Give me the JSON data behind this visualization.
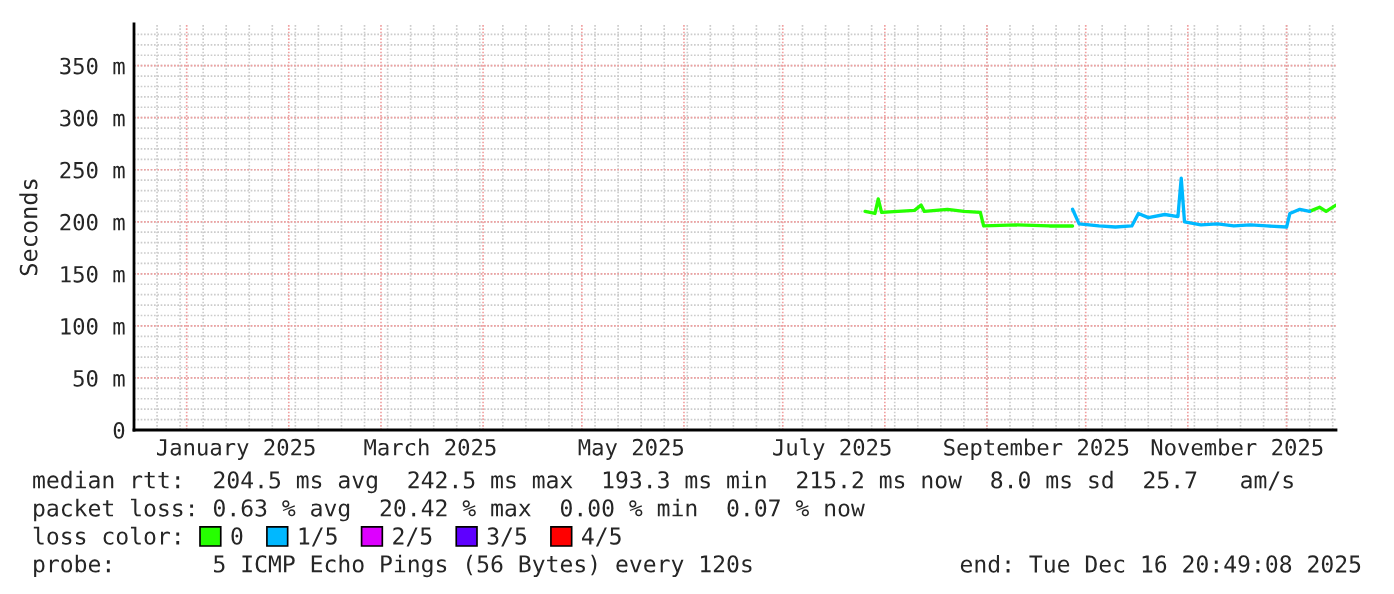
{
  "chart_data": {
    "type": "line",
    "ylabel": "Seconds",
    "xlim": [
      "2024-12-16",
      "2025-12-16"
    ],
    "xticks": [
      {
        "value": "2025-01-16",
        "label": "January 2025"
      },
      {
        "value": "2025-03-16",
        "label": "March 2025"
      },
      {
        "value": "2025-05-16",
        "label": "May 2025"
      },
      {
        "value": "2025-07-16",
        "label": "July 2025"
      },
      {
        "value": "2025-09-16",
        "label": "September 2025"
      },
      {
        "value": "2025-11-16",
        "label": "November 2025"
      }
    ],
    "ylim": [
      0,
      390
    ],
    "yticks": [
      0,
      {
        "value": 50,
        "label": "50 m"
      },
      {
        "value": 100,
        "label": "100 m"
      },
      {
        "value": 150,
        "label": "150 m"
      },
      {
        "value": 200,
        "label": "200 m"
      },
      {
        "value": 250,
        "label": "250 m"
      },
      {
        "value": 300,
        "label": "300 m"
      },
      {
        "value": 350,
        "label": "350 m"
      }
    ],
    "grid": true,
    "legend": "bottom",
    "legend_title": "loss color:",
    "series": [
      {
        "name": "0",
        "color": "#26ff00",
        "x": [
          "2025-07-26",
          "2025-07-29",
          "2025-07-30",
          "2025-07-31",
          "2025-08-05",
          "2025-08-10",
          "2025-08-12",
          "2025-08-13",
          "2025-08-20",
          "2025-08-25",
          "2025-08-30",
          "2025-08-31",
          "2025-09-10",
          "2025-09-20",
          "2025-09-27"
        ],
        "values": [
          210,
          208,
          222,
          209,
          210,
          211,
          216,
          210,
          212,
          210,
          209,
          196,
          197,
          196,
          196
        ]
      },
      {
        "color": "#26ff00",
        "x": [
          "2025-12-08",
          "2025-12-11",
          "2025-12-13",
          "2025-12-16"
        ],
        "values": [
          210,
          214,
          210,
          216
        ]
      },
      {
        "name": "1/5",
        "color": "#00b8ff",
        "x": [
          "2025-09-27",
          "2025-09-29",
          "2025-10-05",
          "2025-10-10",
          "2025-10-15",
          "2025-10-17",
          "2025-10-20",
          "2025-10-25",
          "2025-10-29",
          "2025-10-30",
          "2025-10-31",
          "2025-11-05",
          "2025-11-10",
          "2025-11-15",
          "2025-11-20",
          "2025-11-25",
          "2025-12-01",
          "2025-12-02",
          "2025-12-05",
          "2025-12-08"
        ],
        "values": [
          212,
          198,
          196,
          195,
          196,
          208,
          204,
          207,
          205,
          242,
          200,
          197,
          198,
          196,
          197,
          196,
          195,
          208,
          212,
          210
        ]
      },
      {
        "name": "2/5",
        "color": "#dd00ff"
      },
      {
        "name": "3/5",
        "color": "#5e00ff"
      },
      {
        "name": "4/5",
        "color": "#ff0000"
      }
    ],
    "annotations": [
      "median rtt:  204.5 ms avg  242.5 ms max  193.3 ms min  215.2 ms now  8.0 ms sd  25.7   am/s",
      "packet loss: 0.63 % avg  20.42 % max  0.00 % min  0.07 % now",
      "probe:       5 ICMP Echo Pings (56 Bytes) every 120s",
      "end: Tue Dec 16 20:49:08 2025"
    ]
  }
}
